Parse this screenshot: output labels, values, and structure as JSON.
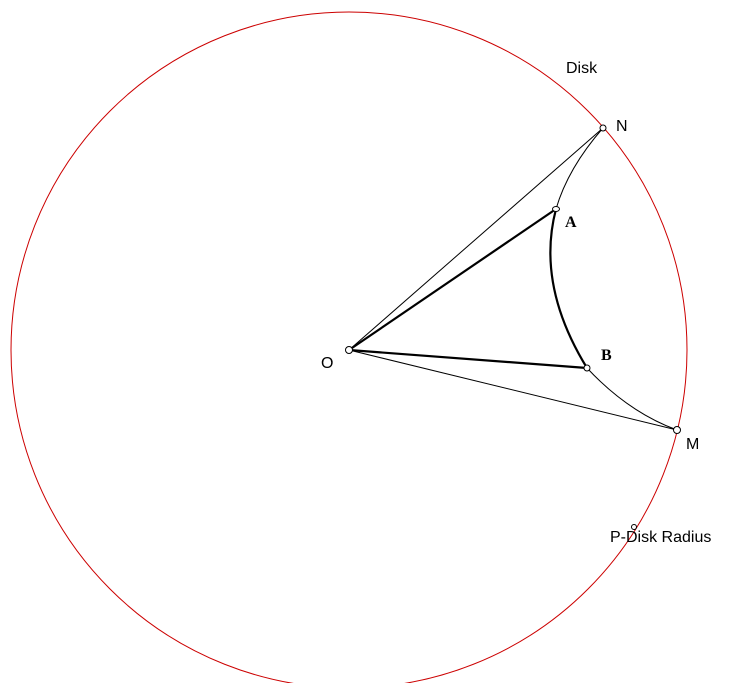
{
  "diagram": {
    "disk_label": "Disk",
    "radius_label": "P-Disk Radius",
    "points": {
      "O": "O",
      "N": "N",
      "A": "A",
      "B": "B",
      "M": "M"
    },
    "colors": {
      "disk": "#cc0000",
      "lines": "#000000",
      "background": "#ffffff"
    }
  }
}
